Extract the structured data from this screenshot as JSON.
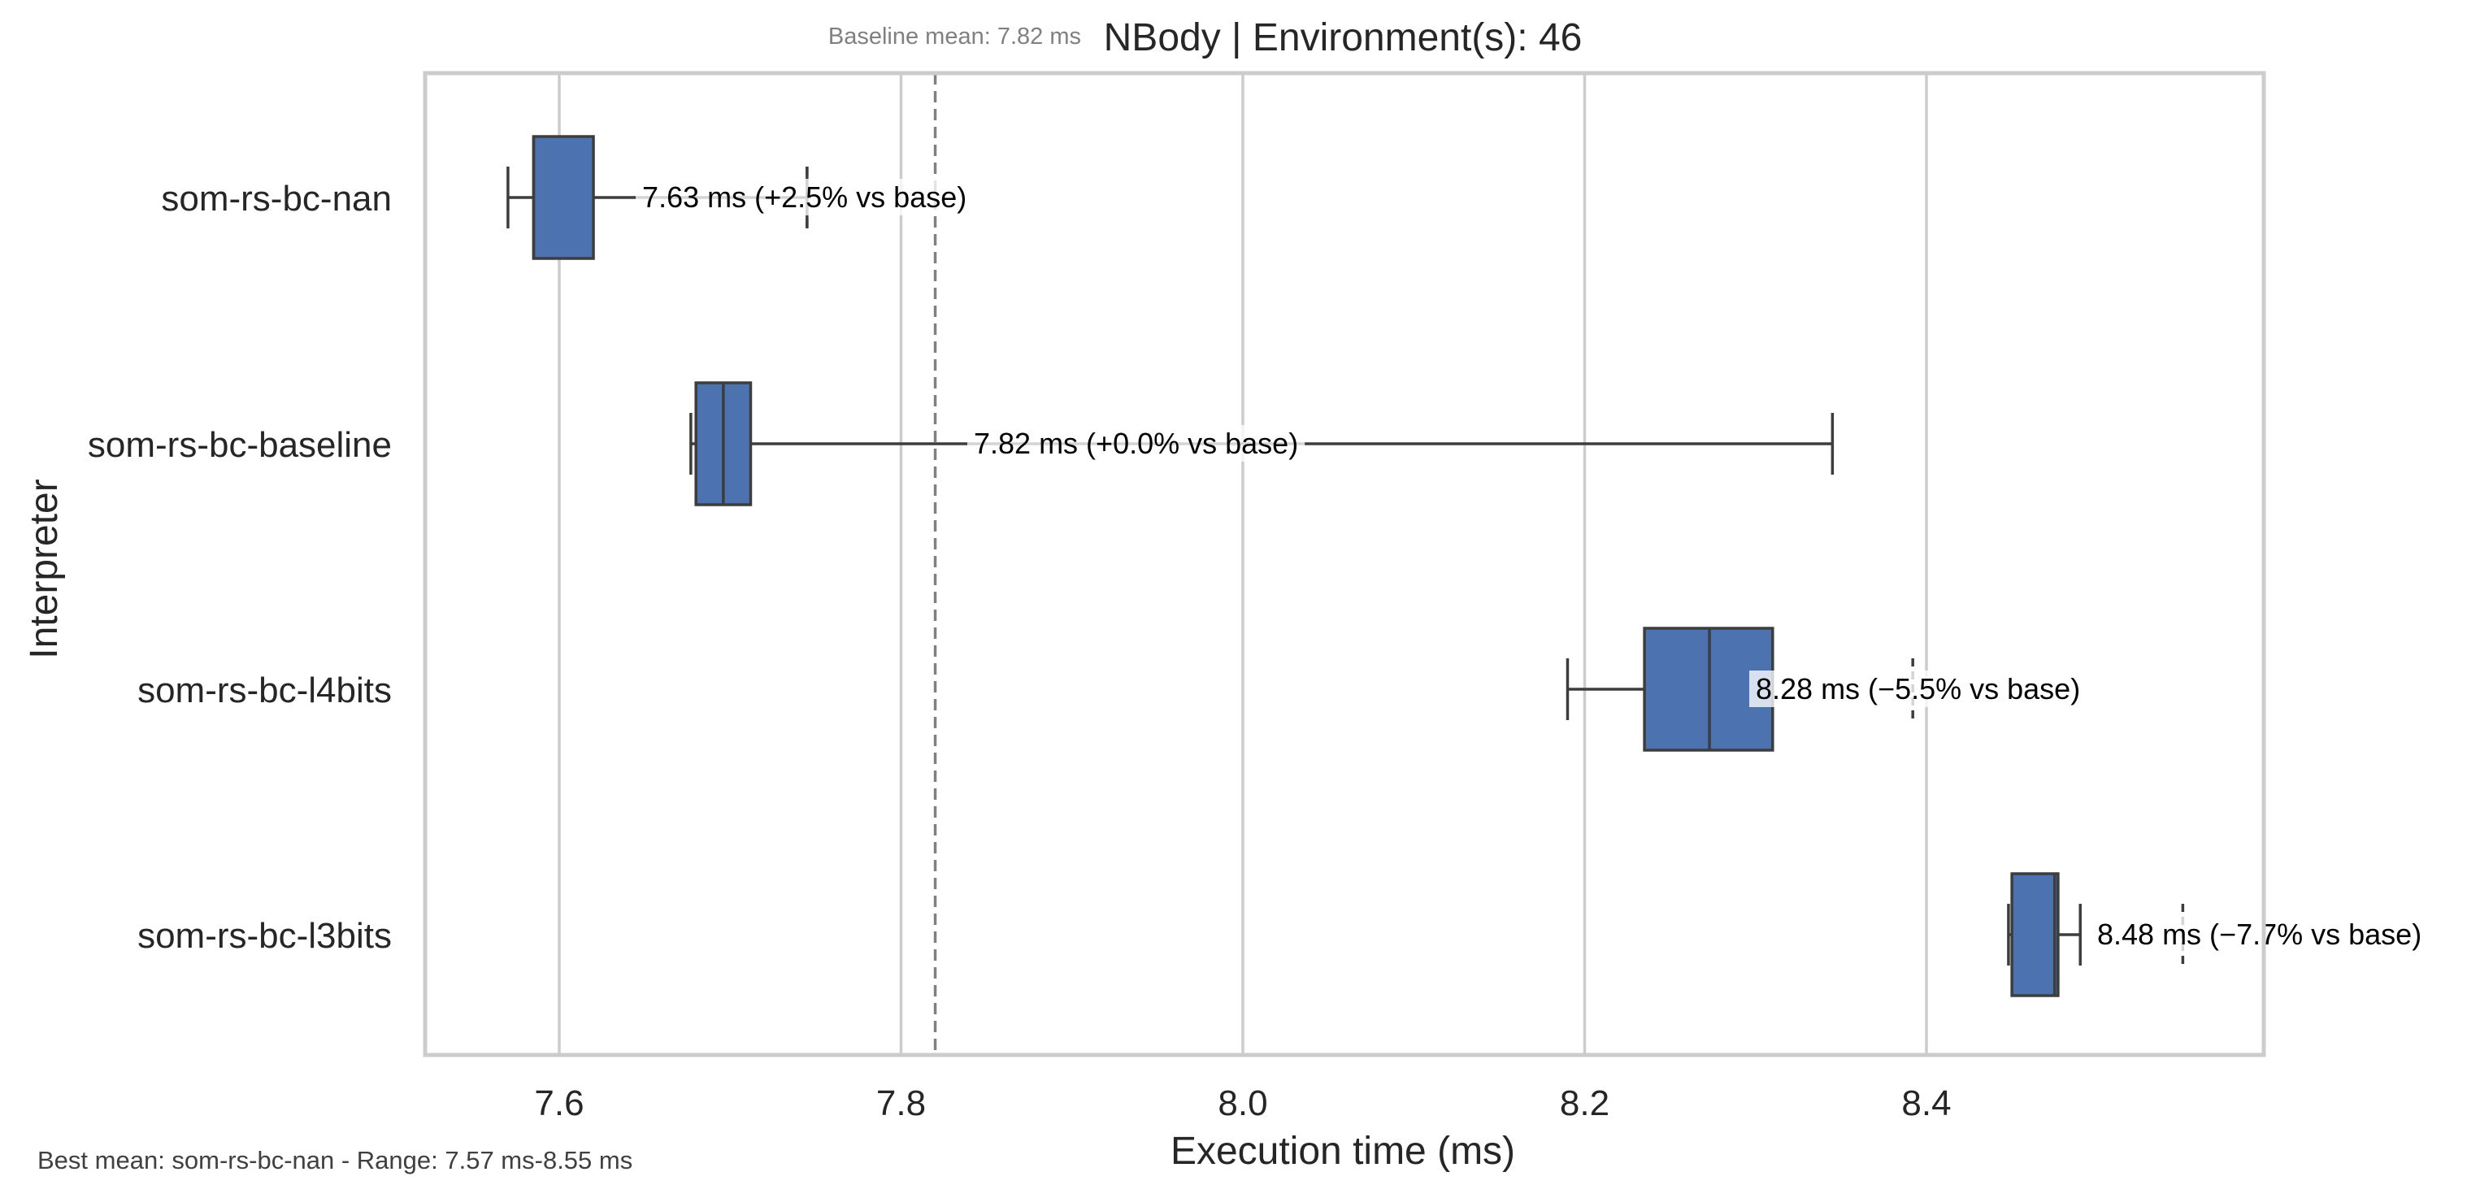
{
  "chart_data": {
    "type": "box",
    "orientation": "horizontal",
    "title": "NBody | Environment(s): 46",
    "baseline_note": "Baseline mean: 7.82 ms",
    "baseline_value": 7.82,
    "xlabel": "Execution time (ms)",
    "ylabel": "Interpreter",
    "xlim": [
      7.52,
      8.59
    ],
    "xticks": [
      7.6,
      7.8,
      8.0,
      8.2,
      8.4
    ],
    "xtick_labels": [
      "7.6",
      "7.8",
      "8.0",
      "8.2",
      "8.4"
    ],
    "grid": "x",
    "footer": "Best mean: som-rs-bc-nan - Range: 7.57 ms-8.55 ms",
    "colors": {
      "box_fill": "#4c72b0",
      "box_edge": "#3d3d3d",
      "grid": "#cccccc",
      "frame": "#cccccc",
      "baseline_line": "#808080",
      "note_text": "#808080"
    },
    "series": [
      {
        "name": "som-rs-bc-nan",
        "whisker_low": 7.57,
        "q1": 7.585,
        "median": 7.585,
        "q3": 7.62,
        "whisker_high": 7.745,
        "mean_marker": 7.745,
        "label": "7.63 ms  (+2.5% vs base)"
      },
      {
        "name": "som-rs-bc-baseline",
        "whisker_low": 7.677,
        "q1": 7.68,
        "median": 7.696,
        "q3": 7.712,
        "whisker_high": 8.345,
        "mean_marker": null,
        "label": "7.82 ms  (+0.0% vs base)"
      },
      {
        "name": "som-rs-bc-l4bits",
        "whisker_low": 8.19,
        "q1": 8.235,
        "median": 8.273,
        "q3": 8.31,
        "whisker_high": 8.31,
        "mean_marker": 8.392,
        "label": "8.28 ms  (−5.5% vs base)"
      },
      {
        "name": "som-rs-bc-l3bits",
        "whisker_low": 8.448,
        "q1": 8.45,
        "median": 8.475,
        "q3": 8.477,
        "whisker_high": 8.49,
        "mean_marker": 8.55,
        "label": "8.48 ms  (−7.7% vs base)"
      }
    ]
  }
}
